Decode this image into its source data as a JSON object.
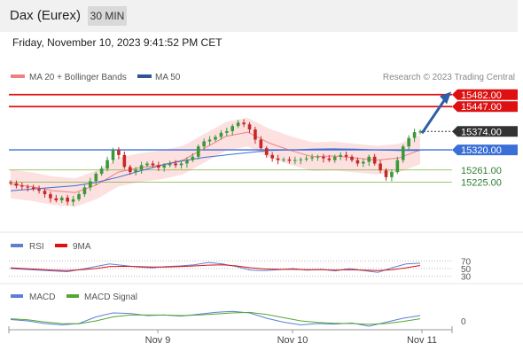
{
  "header": {
    "instrument": "Dax (Eurex)",
    "timeframe": "30 MIN",
    "datetime": "Friday, November 10, 2023 9:41:52 PM CET"
  },
  "legend": {
    "ma20_label": "MA 20 + Bollinger Bands",
    "ma50_label": "MA 50",
    "credit": "Research © 2023 Trading Central",
    "rsi_label": "RSI",
    "rsi_ma_label": "9MA",
    "macd_label": "MACD",
    "macd_signal_label": "MACD Signal"
  },
  "colors": {
    "resistance": "#dd1111",
    "support": "#7cb342",
    "ma50": "#3a6fd8",
    "ma20": "#f08080",
    "bollinger_fill": "#fde0e0",
    "current_price_tag": "#333333",
    "rsi": "#5b7fd6",
    "rsi_ma": "#dd1111",
    "macd": "#5b7fd6",
    "macd_signal": "#55a630",
    "candle_up": "#3a9a3a",
    "candle_down": "#c62828",
    "projection_arrow": "#2d5ea8"
  },
  "chart_data": [
    {
      "type": "candlestick",
      "title": "Dax (Eurex)",
      "timeframe": "30 MIN",
      "x_ticks": [
        "Nov 9",
        "Nov 10",
        "Nov 11"
      ],
      "ylim": [
        15120,
        15510
      ],
      "current_price": 15374.0,
      "levels": [
        {
          "label": "15482.00",
          "value": 15482.0,
          "kind": "resistance"
        },
        {
          "label": "15447.00",
          "value": 15447.0,
          "kind": "resistance"
        },
        {
          "label": "15374.00",
          "value": 15374.0,
          "kind": "current"
        },
        {
          "label": "15320.00",
          "value": 15320.0,
          "kind": "pivot"
        },
        {
          "label": "15261.00",
          "value": 15261.0,
          "kind": "support"
        },
        {
          "label": "15225.00",
          "value": 15225.0,
          "kind": "support"
        }
      ],
      "price_path": [
        15222,
        15215,
        15212,
        15210,
        15205,
        15200,
        15190,
        15178,
        15172,
        15180,
        15168,
        15175,
        15190,
        15210,
        15228,
        15250,
        15265,
        15290,
        15320,
        15305,
        15270,
        15255,
        15262,
        15275,
        15280,
        15275,
        15268,
        15275,
        15280,
        15275,
        15280,
        15290,
        15300,
        15330,
        15345,
        15350,
        15358,
        15370,
        15375,
        15390,
        15400,
        15395,
        15380,
        15350,
        15325,
        15305,
        15295,
        15290,
        15292,
        15288,
        15290,
        15292,
        15295,
        15298,
        15300,
        15295,
        15290,
        15300,
        15305,
        15300,
        15290,
        15280,
        15285,
        15300,
        15280,
        15260,
        15240,
        15255,
        15290,
        15330,
        15355,
        15372,
        15374
      ],
      "ma50_path": [
        15200,
        15205,
        15210,
        15215,
        15225,
        15240,
        15258,
        15275,
        15288,
        15298,
        15305,
        15312,
        15318,
        15320,
        15322,
        15323,
        15322,
        15320,
        15318,
        15318
      ],
      "ma20_path": [
        15220,
        15212,
        15200,
        15195,
        15218,
        15255,
        15268,
        15276,
        15290,
        15325,
        15360,
        15372,
        15340,
        15318,
        15300,
        15302,
        15296,
        15290,
        15296,
        15320
      ]
    },
    {
      "type": "line",
      "name": "RSI",
      "y_ticks": [
        "70",
        "50",
        "30"
      ],
      "series": [
        {
          "name": "RSI",
          "values": [
            50,
            48,
            46,
            44,
            42,
            48,
            55,
            62,
            58,
            54,
            52,
            55,
            57,
            60,
            66,
            62,
            55,
            46,
            45,
            47,
            50,
            46,
            48,
            44,
            50,
            45,
            40,
            52,
            62,
            64
          ]
        },
        {
          "name": "9MA",
          "values": [
            52,
            50,
            48,
            46,
            45,
            47,
            50,
            55,
            56,
            55,
            54,
            54,
            55,
            57,
            59,
            60,
            57,
            52,
            49,
            48,
            48,
            47,
            47,
            46,
            47,
            46,
            45,
            47,
            52,
            58
          ]
        }
      ]
    },
    {
      "type": "line",
      "name": "MACD",
      "y_ticks": [
        "0"
      ],
      "series": [
        {
          "name": "MACD",
          "values": [
            5,
            0,
            -10,
            -15,
            -10,
            15,
            30,
            28,
            20,
            22,
            18,
            25,
            32,
            36,
            30,
            10,
            -5,
            -15,
            -10,
            -12,
            -8,
            -20,
            -5,
            10,
            20
          ]
        },
        {
          "name": "MACD Signal",
          "values": [
            8,
            4,
            -4,
            -10,
            -11,
            0,
            15,
            22,
            22,
            22,
            20,
            22,
            26,
            30,
            32,
            24,
            12,
            0,
            -6,
            -9,
            -10,
            -13,
            -10,
            -2,
            8
          ]
        }
      ]
    }
  ]
}
